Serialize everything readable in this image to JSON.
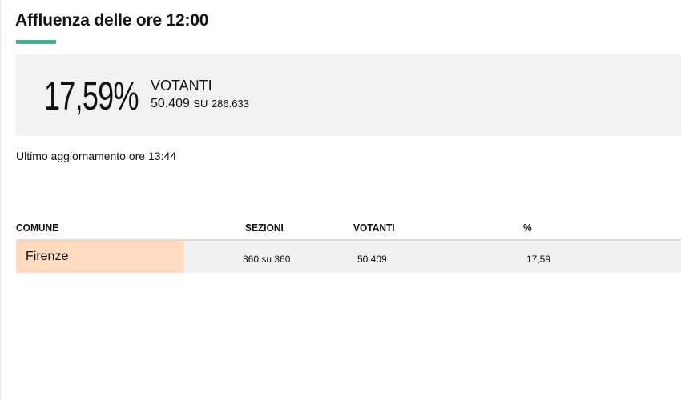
{
  "header": {
    "title": "Affluenza delle ore 12:00"
  },
  "summary": {
    "percent": "17,59%",
    "label": "VOTANTI",
    "voters": "50.409",
    "su": "SU",
    "total": "286.633"
  },
  "update": "Ultimo aggiornamento ore 13:44",
  "table": {
    "columns": [
      "COMUNE",
      "SEZIONI",
      "VOTANTI",
      "%"
    ],
    "rows": [
      {
        "comune": "Firenze",
        "sezioni": "360 su 360",
        "votanti": "50.409",
        "pct": "17,59"
      }
    ]
  },
  "colors": {
    "accent": "#4caf93",
    "highlight": "#fddcc2",
    "panel": "#f2f2f2"
  }
}
